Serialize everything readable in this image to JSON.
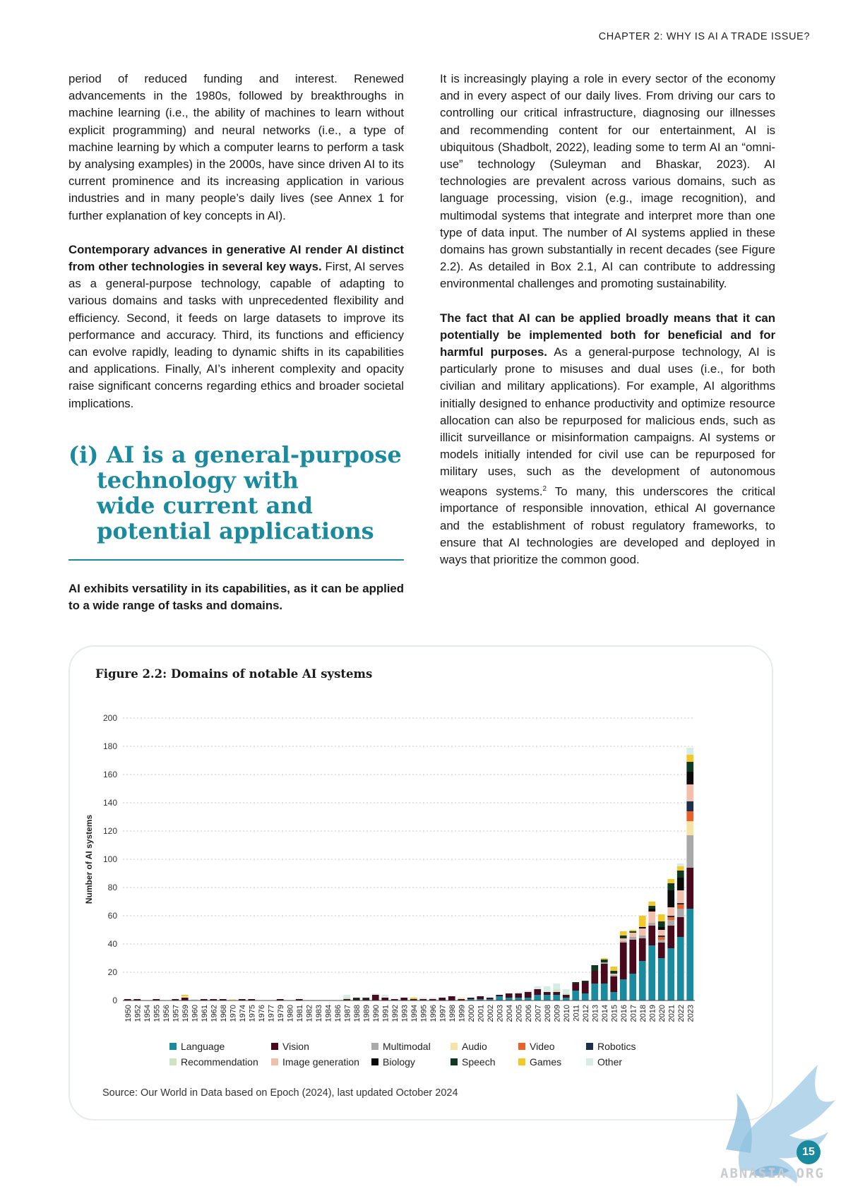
{
  "header": {
    "chapter": "CHAPTER 2: WHY IS AI A TRADE ISSUE?"
  },
  "left_column": {
    "p1": "period of reduced funding and interest. Renewed advancements in the 1980s, followed by breakthroughs in machine learning (i.e., the ability of machines to learn without explicit programming) and neural networks (i.e., a type of machine learning by which a computer learns to perform a task by analysing examples) in the 2000s, have since driven AI to its current prominence and its increasing application in various industries and in many people’s daily lives (see Annex 1 for further explanation of key concepts in AI).",
    "p2_bold": "Contemporary advances in generative AI render AI distinct from other technologies in several key ways.",
    "p2_rest": " First, AI serves as a general-purpose technology, capable of adapting to various domains and tasks with unprecedented flexibility and efficiency. Second, it feeds on large datasets to improve its performance and accuracy. Third, its functions and efficiency can evolve rapidly, leading to dynamic shifts in its capabilities and applications. Finally, AI’s inherent complexity and opacity raise significant concerns regarding ethics and broader societal implications."
  },
  "section_heading": {
    "line1": "(i) AI is a general-purpose",
    "line2": "technology with",
    "line3": "wide current and",
    "line4": "potential applications"
  },
  "section_lead": "AI exhibits versatility in its capabilities, as it can be applied to a wide range of tasks and domains.",
  "right_column": {
    "p1": "It is increasingly playing a role in every sector of the economy and in every aspect of our daily lives. From driving our cars to controlling our critical infrastructure, diagnosing our illnesses and recommending content for our entertainment, AI is ubiquitous (Shadbolt, 2022), leading some to term AI an “omni-use” technology (Suleyman and Bhaskar, 2023). AI technologies are prevalent across various domains, such as language processing, vision (e.g., image recognition), and multimodal systems that integrate and interpret more than one type of data input. The number of AI systems applied in these domains has grown substantially in recent decades (see Figure 2.2). As detailed in Box 2.1, AI can contribute to addressing environmental challenges and promoting sustainability.",
    "p2_bold": "The fact that AI can be applied broadly means that it can potentially be implemented both for beneficial and for harmful purposes.",
    "p2_rest": " As a general-purpose technology, AI is particularly prone to misuses and dual uses (i.e., for both civilian and military applications). For example, AI algorithms initially designed to enhance productivity and optimize resource allocation can also be repurposed for malicious ends, such as illicit surveillance or misinformation campaigns. AI systems or models initially intended for civil use can be repurposed for military uses, such as the development of autonomous weapons systems.",
    "p2_footnote": "2",
    "p2_tail": " To many, this underscores the critical importance of responsible innovation, ethical AI governance and the establishment of robust regulatory frameworks, to ensure that AI technologies are developed and deployed in ways that prioritize the common good."
  },
  "figure": {
    "title": "Figure 2.2: Domains of notable AI systems",
    "source": "Source: Our World in Data based on Epoch (2024), last updated October 2024"
  },
  "chart_data": {
    "type": "bar",
    "stacked": true,
    "title": "Figure 2.2: Domains of notable AI systems",
    "xlabel": "",
    "ylabel": "Number of AI systems",
    "ylim": [
      0,
      200
    ],
    "yticks": [
      0,
      20,
      40,
      60,
      80,
      100,
      120,
      140,
      160,
      180,
      200
    ],
    "grid": true,
    "legend_position": "bottom",
    "categories": [
      "1950",
      "1952",
      "1954",
      "1955",
      "1956",
      "1957",
      "1959",
      "1960",
      "1961",
      "1962",
      "1968",
      "1970",
      "1974",
      "1975",
      "1976",
      "1977",
      "1979",
      "1980",
      "1981",
      "1982",
      "1983",
      "1984",
      "1986",
      "1987",
      "1988",
      "1989",
      "1990",
      "1991",
      "1992",
      "1993",
      "1994",
      "1995",
      "1996",
      "1997",
      "1998",
      "1999",
      "2000",
      "2001",
      "2002",
      "2003",
      "2004",
      "2005",
      "2006",
      "2007",
      "2008",
      "2009",
      "2010",
      "2011",
      "2012",
      "2013",
      "2014",
      "2015",
      "2016",
      "2017",
      "2018",
      "2019",
      "2020",
      "2021",
      "2022",
      "2023"
    ],
    "series": [
      {
        "name": "Language",
        "color": "#1a8a9e",
        "values": [
          0,
          0,
          0,
          0,
          0,
          0,
          0,
          0,
          0,
          0,
          0,
          0,
          0,
          0,
          0,
          0,
          0,
          0,
          0,
          0,
          0,
          0,
          0,
          0,
          0,
          0,
          0,
          0,
          0,
          0,
          0,
          0,
          0,
          0,
          0,
          0,
          1,
          1,
          1,
          3,
          2,
          2,
          2,
          4,
          4,
          4,
          2,
          7,
          5,
          12,
          12,
          6,
          15,
          19,
          28,
          39,
          30,
          37,
          45,
          65
        ]
      },
      {
        "name": "Vision",
        "color": "#4a0a1e",
        "values": [
          1,
          1,
          0,
          1,
          0,
          1,
          2,
          0,
          1,
          1,
          1,
          0,
          1,
          1,
          0,
          0,
          1,
          0,
          1,
          0,
          0,
          0,
          0,
          1,
          1,
          1,
          4,
          2,
          1,
          2,
          1,
          1,
          1,
          2,
          3,
          1,
          1,
          2,
          1,
          1,
          3,
          3,
          4,
          4,
          2,
          2,
          2,
          5,
          8,
          9,
          14,
          11,
          26,
          24,
          16,
          14,
          11,
          16,
          14,
          29
        ]
      },
      {
        "name": "Multimodal",
        "color": "#a9a9a9",
        "values": [
          0,
          0,
          0,
          0,
          0,
          0,
          0,
          0,
          0,
          0,
          0,
          0,
          0,
          0,
          0,
          0,
          0,
          0,
          0,
          0,
          0,
          0,
          0,
          0,
          0,
          0,
          0,
          0,
          0,
          0,
          0,
          0,
          0,
          0,
          0,
          0,
          0,
          0,
          0,
          0,
          0,
          0,
          0,
          0,
          0,
          0,
          0,
          0,
          0,
          0,
          1,
          1,
          1,
          2,
          2,
          2,
          2,
          4,
          6,
          23
        ]
      },
      {
        "name": "Audio",
        "color": "#f7e3a6",
        "values": [
          0,
          0,
          0,
          0,
          0,
          0,
          1,
          0,
          0,
          0,
          0,
          1,
          0,
          0,
          0,
          0,
          0,
          0,
          0,
          0,
          0,
          0,
          0,
          0,
          0,
          0,
          0,
          0,
          0,
          0,
          0,
          0,
          0,
          0,
          0,
          1,
          0,
          0,
          0,
          0,
          0,
          0,
          0,
          0,
          0,
          0,
          0,
          0,
          0,
          0,
          0,
          0,
          0,
          0,
          0,
          0,
          0,
          0,
          0,
          10
        ]
      },
      {
        "name": "Video",
        "color": "#e8622a",
        "values": [
          0,
          0,
          0,
          0,
          0,
          0,
          0,
          0,
          0,
          0,
          0,
          0,
          0,
          0,
          0,
          0,
          0,
          0,
          0,
          0,
          0,
          0,
          0,
          0,
          0,
          0,
          0,
          0,
          0,
          0,
          0,
          0,
          0,
          0,
          0,
          0,
          0,
          0,
          0,
          0,
          0,
          0,
          0,
          0,
          0,
          0,
          0,
          0,
          0,
          0,
          0,
          0,
          0,
          0,
          0,
          0,
          2,
          2,
          3,
          7
        ]
      },
      {
        "name": "Robotics",
        "color": "#1b2e4d",
        "values": [
          0,
          0,
          0,
          0,
          0,
          0,
          0,
          0,
          0,
          0,
          0,
          0,
          0,
          0,
          0,
          0,
          0,
          0,
          0,
          0,
          0,
          0,
          0,
          0,
          0,
          0,
          0,
          0,
          0,
          0,
          0,
          0,
          0,
          0,
          0,
          0,
          0,
          0,
          0,
          0,
          0,
          0,
          0,
          0,
          0,
          0,
          0,
          0,
          0,
          0,
          0,
          0,
          0,
          0,
          0,
          0,
          1,
          1,
          1,
          7
        ]
      },
      {
        "name": "Recommendation",
        "color": "#cde3c4",
        "values": [
          0,
          0,
          0,
          0,
          0,
          0,
          0,
          0,
          0,
          0,
          0,
          0,
          0,
          0,
          0,
          0,
          0,
          0,
          0,
          0,
          0,
          0,
          0,
          1,
          0,
          0,
          0,
          0,
          0,
          0,
          0,
          0,
          0,
          0,
          0,
          0,
          0,
          0,
          0,
          0,
          0,
          0,
          0,
          0,
          0,
          2,
          1,
          0,
          0,
          0,
          0,
          0,
          0,
          0,
          0,
          0,
          0,
          0,
          0,
          0
        ]
      },
      {
        "name": "Image generation",
        "color": "#f2bfad",
        "values": [
          0,
          0,
          0,
          0,
          0,
          0,
          0,
          0,
          0,
          0,
          0,
          0,
          0,
          0,
          0,
          0,
          0,
          0,
          0,
          0,
          0,
          0,
          0,
          0,
          0,
          0,
          0,
          0,
          0,
          0,
          0,
          0,
          0,
          0,
          0,
          0,
          0,
          0,
          0,
          0,
          0,
          0,
          0,
          0,
          0,
          0,
          0,
          0,
          0,
          0,
          0,
          1,
          2,
          3,
          5,
          8,
          4,
          6,
          9,
          12
        ]
      },
      {
        "name": "Biology",
        "color": "#0a0a0a",
        "values": [
          0,
          0,
          0,
          0,
          0,
          0,
          0,
          0,
          0,
          0,
          0,
          0,
          0,
          0,
          0,
          0,
          0,
          0,
          0,
          0,
          0,
          0,
          0,
          0,
          0,
          0,
          0,
          0,
          0,
          0,
          0,
          0,
          0,
          0,
          0,
          0,
          0,
          0,
          0,
          0,
          0,
          0,
          0,
          0,
          0,
          0,
          0,
          0,
          0,
          0,
          0,
          0,
          0,
          0,
          1,
          2,
          2,
          12,
          9,
          9
        ]
      },
      {
        "name": "Speech",
        "color": "#0e3a24",
        "values": [
          0,
          0,
          0,
          0,
          0,
          0,
          0,
          0,
          0,
          0,
          0,
          0,
          0,
          0,
          0,
          0,
          0,
          0,
          0,
          0,
          0,
          0,
          0,
          0,
          1,
          1,
          0,
          0,
          0,
          0,
          0,
          0,
          0,
          0,
          0,
          0,
          0,
          0,
          0,
          0,
          0,
          0,
          0,
          0,
          0,
          0,
          0,
          1,
          1,
          4,
          2,
          2,
          2,
          1,
          0,
          2,
          4,
          5,
          5,
          7
        ]
      },
      {
        "name": "Games",
        "color": "#f2c928",
        "values": [
          0,
          0,
          0,
          0,
          0,
          0,
          1,
          0,
          0,
          0,
          0,
          0,
          0,
          0,
          0,
          0,
          0,
          0,
          0,
          0,
          0,
          0,
          0,
          0,
          0,
          0,
          0,
          0,
          0,
          0,
          1,
          0,
          0,
          0,
          0,
          0,
          0,
          0,
          0,
          0,
          0,
          0,
          0,
          0,
          0,
          0,
          0,
          0,
          0,
          0,
          1,
          3,
          3,
          1,
          8,
          3,
          5,
          3,
          3,
          5
        ]
      },
      {
        "name": "Other",
        "color": "#d6ece6",
        "values": [
          0,
          0,
          0,
          0,
          0,
          0,
          0,
          1,
          0,
          0,
          0,
          0,
          0,
          0,
          0,
          0,
          0,
          0,
          0,
          0,
          0,
          0,
          0,
          2,
          0,
          0,
          1,
          2,
          0,
          0,
          0,
          1,
          1,
          0,
          0,
          0,
          0,
          0,
          0,
          0,
          0,
          1,
          1,
          2,
          4,
          4,
          3,
          0,
          0,
          0,
          0,
          0,
          0,
          0,
          0,
          0,
          0,
          0,
          2,
          5
        ]
      }
    ]
  },
  "page_number": "15",
  "watermark": {
    "text": "ABNASIA.ORG"
  }
}
